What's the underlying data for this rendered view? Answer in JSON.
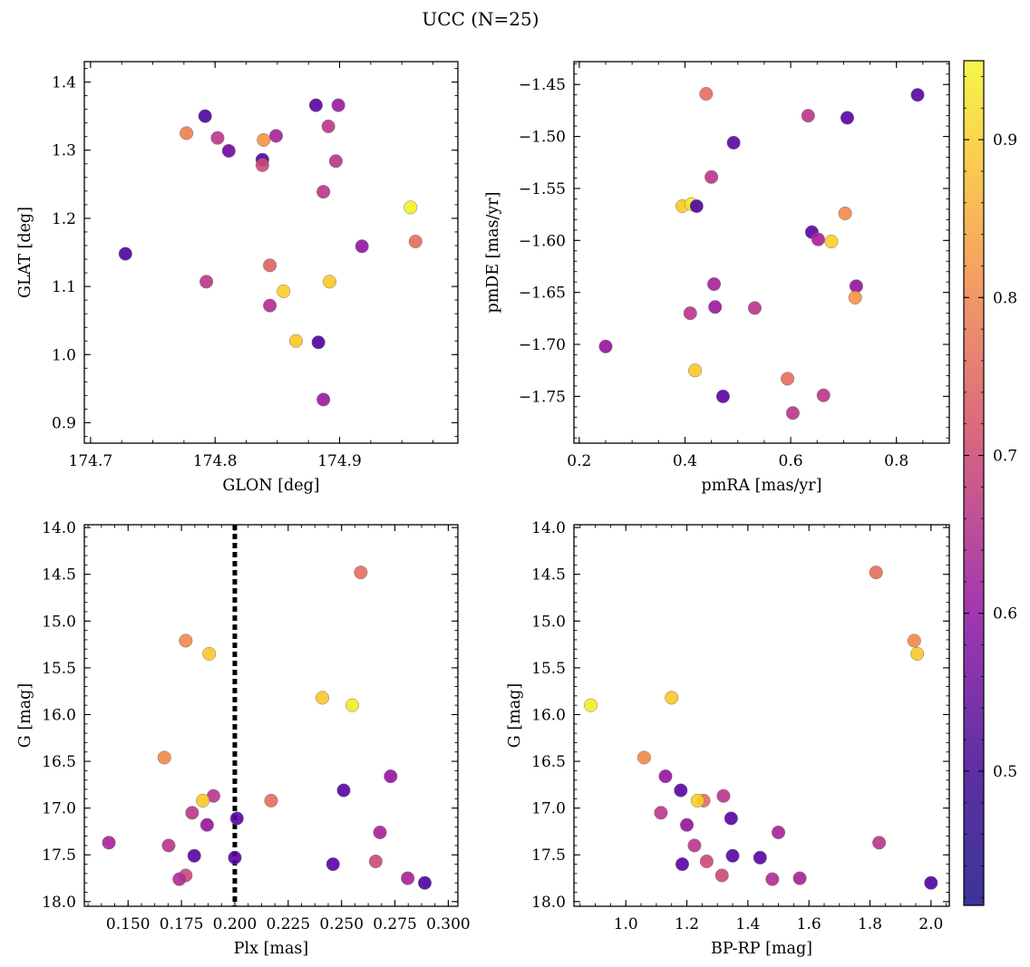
{
  "figure": {
    "suptitle": "UCC (N=25)",
    "colorbar": {
      "colormap": "plasma",
      "range": [
        0.415,
        0.95
      ],
      "ticks": [
        0.5,
        0.6,
        0.7,
        0.8,
        0.9
      ],
      "tick_labels": [
        "0.5",
        "0.6",
        "0.7",
        "0.8",
        "0.9"
      ]
    }
  },
  "chart_data": [
    {
      "type": "scatter",
      "xlabel": "GLON [deg]",
      "ylabel": "GLAT [deg]",
      "xlim": [
        174.695,
        174.995
      ],
      "ylim": [
        0.87,
        1.43
      ],
      "xticks": [
        174.7,
        174.8,
        174.9
      ],
      "xtick_labels": [
        "174.7",
        "174.8",
        "174.9"
      ],
      "yticks": [
        0.9,
        1.0,
        1.1,
        1.2,
        1.3,
        1.4
      ],
      "ytick_labels": [
        "0.9",
        "1.0",
        "1.1",
        "1.2",
        "1.3",
        "1.4"
      ],
      "points": [
        {
          "x": 174.728,
          "y": 1.148,
          "c": 0.44
        },
        {
          "x": 174.792,
          "y": 1.35,
          "c": 0.44
        },
        {
          "x": 174.777,
          "y": 1.325,
          "c": 0.76
        },
        {
          "x": 174.802,
          "y": 1.318,
          "c": 0.62
        },
        {
          "x": 174.811,
          "y": 1.299,
          "c": 0.5
        },
        {
          "x": 174.793,
          "y": 1.107,
          "c": 0.62
        },
        {
          "x": 174.838,
          "y": 1.286,
          "c": 0.44
        },
        {
          "x": 174.838,
          "y": 1.278,
          "c": 0.66
        },
        {
          "x": 174.839,
          "y": 1.315,
          "c": 0.8
        },
        {
          "x": 174.849,
          "y": 1.321,
          "c": 0.58
        },
        {
          "x": 174.844,
          "y": 1.131,
          "c": 0.71
        },
        {
          "x": 174.844,
          "y": 1.072,
          "c": 0.6
        },
        {
          "x": 174.855,
          "y": 1.093,
          "c": 0.89
        },
        {
          "x": 174.865,
          "y": 1.02,
          "c": 0.88
        },
        {
          "x": 174.881,
          "y": 1.366,
          "c": 0.46
        },
        {
          "x": 174.883,
          "y": 1.018,
          "c": 0.44
        },
        {
          "x": 174.887,
          "y": 1.239,
          "c": 0.62
        },
        {
          "x": 174.887,
          "y": 0.934,
          "c": 0.56
        },
        {
          "x": 174.891,
          "y": 1.335,
          "c": 0.62
        },
        {
          "x": 174.892,
          "y": 1.107,
          "c": 0.88
        },
        {
          "x": 174.897,
          "y": 1.284,
          "c": 0.62
        },
        {
          "x": 174.899,
          "y": 1.366,
          "c": 0.56
        },
        {
          "x": 174.918,
          "y": 1.159,
          "c": 0.55
        },
        {
          "x": 174.957,
          "y": 1.216,
          "c": 0.94
        },
        {
          "x": 174.961,
          "y": 1.166,
          "c": 0.73
        }
      ]
    },
    {
      "type": "scatter",
      "xlabel": "pmRA [mas/yr]",
      "ylabel": "pmDE [mas/yr]",
      "xlim": [
        0.19,
        0.9
      ],
      "ylim": [
        -1.795,
        -1.428
      ],
      "xticks": [
        0.2,
        0.4,
        0.6,
        0.8
      ],
      "xtick_labels": [
        "0.2",
        "0.4",
        "0.6",
        "0.8"
      ],
      "yticks": [
        -1.45,
        -1.5,
        -1.55,
        -1.6,
        -1.65,
        -1.7,
        -1.75
      ],
      "ytick_labels": [
        "−1.45",
        "−1.50",
        "−1.55",
        "−1.60",
        "−1.65",
        "−1.70",
        "−1.75"
      ],
      "points": [
        {
          "x": 0.44,
          "y": -1.459,
          "c": 0.73
        },
        {
          "x": 0.84,
          "y": -1.46,
          "c": 0.46
        },
        {
          "x": 0.633,
          "y": -1.48,
          "c": 0.62
        },
        {
          "x": 0.707,
          "y": -1.482,
          "c": 0.46
        },
        {
          "x": 0.492,
          "y": -1.506,
          "c": 0.46
        },
        {
          "x": 0.45,
          "y": -1.539,
          "c": 0.62
        },
        {
          "x": 0.395,
          "y": -1.567,
          "c": 0.88
        },
        {
          "x": 0.412,
          "y": -1.565,
          "c": 0.93
        },
        {
          "x": 0.422,
          "y": -1.567,
          "c": 0.44
        },
        {
          "x": 0.703,
          "y": -1.574,
          "c": 0.78
        },
        {
          "x": 0.64,
          "y": -1.592,
          "c": 0.46
        },
        {
          "x": 0.652,
          "y": -1.599,
          "c": 0.58
        },
        {
          "x": 0.677,
          "y": -1.601,
          "c": 0.89
        },
        {
          "x": 0.455,
          "y": -1.642,
          "c": 0.58
        },
        {
          "x": 0.724,
          "y": -1.644,
          "c": 0.55
        },
        {
          "x": 0.722,
          "y": -1.655,
          "c": 0.8
        },
        {
          "x": 0.457,
          "y": -1.664,
          "c": 0.56
        },
        {
          "x": 0.532,
          "y": -1.665,
          "c": 0.62
        },
        {
          "x": 0.41,
          "y": -1.67,
          "c": 0.62
        },
        {
          "x": 0.25,
          "y": -1.702,
          "c": 0.55
        },
        {
          "x": 0.419,
          "y": -1.725,
          "c": 0.88
        },
        {
          "x": 0.594,
          "y": -1.733,
          "c": 0.73
        },
        {
          "x": 0.472,
          "y": -1.75,
          "c": 0.46
        },
        {
          "x": 0.662,
          "y": -1.749,
          "c": 0.62
        },
        {
          "x": 0.604,
          "y": -1.766,
          "c": 0.62
        }
      ]
    },
    {
      "type": "scatter",
      "xlabel": "Plx [mas]",
      "ylabel": "G [mag]",
      "xlim": [
        0.1295,
        0.3045
      ],
      "ylim": [
        18.05,
        13.97
      ],
      "vline": 0.2,
      "xticks": [
        0.15,
        0.175,
        0.2,
        0.225,
        0.25,
        0.275,
        0.3
      ],
      "xtick_labels": [
        "0.150",
        "0.175",
        "0.200",
        "0.225",
        "0.250",
        "0.275",
        "0.300"
      ],
      "yticks": [
        14.0,
        14.5,
        15.0,
        15.5,
        16.0,
        16.5,
        17.0,
        17.5,
        18.0
      ],
      "ytick_labels": [
        "14.0",
        "14.5",
        "15.0",
        "15.5",
        "16.0",
        "16.5",
        "17.0",
        "17.5",
        "18.0"
      ],
      "points": [
        {
          "x": 0.259,
          "y": 14.48,
          "c": 0.73
        },
        {
          "x": 0.177,
          "y": 15.21,
          "c": 0.78
        },
        {
          "x": 0.188,
          "y": 15.35,
          "c": 0.88
        },
        {
          "x": 0.241,
          "y": 15.82,
          "c": 0.88
        },
        {
          "x": 0.255,
          "y": 15.9,
          "c": 0.93
        },
        {
          "x": 0.167,
          "y": 16.46,
          "c": 0.78
        },
        {
          "x": 0.273,
          "y": 16.66,
          "c": 0.55
        },
        {
          "x": 0.251,
          "y": 16.81,
          "c": 0.46
        },
        {
          "x": 0.19,
          "y": 16.87,
          "c": 0.62
        },
        {
          "x": 0.185,
          "y": 16.92,
          "c": 0.88
        },
        {
          "x": 0.217,
          "y": 16.92,
          "c": 0.73
        },
        {
          "x": 0.18,
          "y": 17.05,
          "c": 0.62
        },
        {
          "x": 0.201,
          "y": 17.11,
          "c": 0.46
        },
        {
          "x": 0.187,
          "y": 17.18,
          "c": 0.55
        },
        {
          "x": 0.268,
          "y": 17.26,
          "c": 0.58
        },
        {
          "x": 0.141,
          "y": 17.37,
          "c": 0.58
        },
        {
          "x": 0.169,
          "y": 17.4,
          "c": 0.62
        },
        {
          "x": 0.181,
          "y": 17.51,
          "c": 0.46
        },
        {
          "x": 0.2,
          "y": 17.53,
          "c": 0.46
        },
        {
          "x": 0.266,
          "y": 17.57,
          "c": 0.66
        },
        {
          "x": 0.246,
          "y": 17.6,
          "c": 0.46
        },
        {
          "x": 0.177,
          "y": 17.72,
          "c": 0.66
        },
        {
          "x": 0.174,
          "y": 17.76,
          "c": 0.6
        },
        {
          "x": 0.281,
          "y": 17.75,
          "c": 0.58
        },
        {
          "x": 0.289,
          "y": 17.8,
          "c": 0.44
        }
      ]
    },
    {
      "type": "scatter",
      "xlabel": "BP-RP [mag]",
      "ylabel": "G [mag]",
      "xlim": [
        0.83,
        2.06
      ],
      "ylim": [
        18.05,
        13.97
      ],
      "xticks": [
        1.0,
        1.2,
        1.4,
        1.6,
        1.8,
        2.0
      ],
      "xtick_labels": [
        "1.0",
        "1.2",
        "1.4",
        "1.6",
        "1.8",
        "2.0"
      ],
      "yticks": [
        14.0,
        14.5,
        15.0,
        15.5,
        16.0,
        16.5,
        17.0,
        17.5,
        18.0
      ],
      "ytick_labels": [
        "14.0",
        "14.5",
        "15.0",
        "15.5",
        "16.0",
        "16.5",
        "17.0",
        "17.5",
        "18.0"
      ],
      "points": [
        {
          "x": 1.82,
          "y": 14.48,
          "c": 0.73
        },
        {
          "x": 1.945,
          "y": 15.21,
          "c": 0.78
        },
        {
          "x": 1.955,
          "y": 15.35,
          "c": 0.88
        },
        {
          "x": 0.885,
          "y": 15.9,
          "c": 0.93
        },
        {
          "x": 1.15,
          "y": 15.82,
          "c": 0.88
        },
        {
          "x": 1.06,
          "y": 16.46,
          "c": 0.78
        },
        {
          "x": 1.13,
          "y": 16.66,
          "c": 0.55
        },
        {
          "x": 1.18,
          "y": 16.81,
          "c": 0.46
        },
        {
          "x": 1.32,
          "y": 16.87,
          "c": 0.62
        },
        {
          "x": 1.255,
          "y": 16.92,
          "c": 0.73
        },
        {
          "x": 1.235,
          "y": 16.92,
          "c": 0.89
        },
        {
          "x": 1.115,
          "y": 17.05,
          "c": 0.62
        },
        {
          "x": 1.345,
          "y": 17.11,
          "c": 0.46
        },
        {
          "x": 1.2,
          "y": 17.18,
          "c": 0.55
        },
        {
          "x": 1.5,
          "y": 17.26,
          "c": 0.58
        },
        {
          "x": 1.83,
          "y": 17.37,
          "c": 0.62
        },
        {
          "x": 1.225,
          "y": 17.4,
          "c": 0.62
        },
        {
          "x": 1.35,
          "y": 17.51,
          "c": 0.46
        },
        {
          "x": 1.44,
          "y": 17.53,
          "c": 0.46
        },
        {
          "x": 1.265,
          "y": 17.57,
          "c": 0.66
        },
        {
          "x": 1.185,
          "y": 17.6,
          "c": 0.46
        },
        {
          "x": 1.315,
          "y": 17.72,
          "c": 0.66
        },
        {
          "x": 1.48,
          "y": 17.76,
          "c": 0.6
        },
        {
          "x": 1.57,
          "y": 17.75,
          "c": 0.58
        },
        {
          "x": 2.0,
          "y": 17.8,
          "c": 0.44
        }
      ]
    }
  ]
}
